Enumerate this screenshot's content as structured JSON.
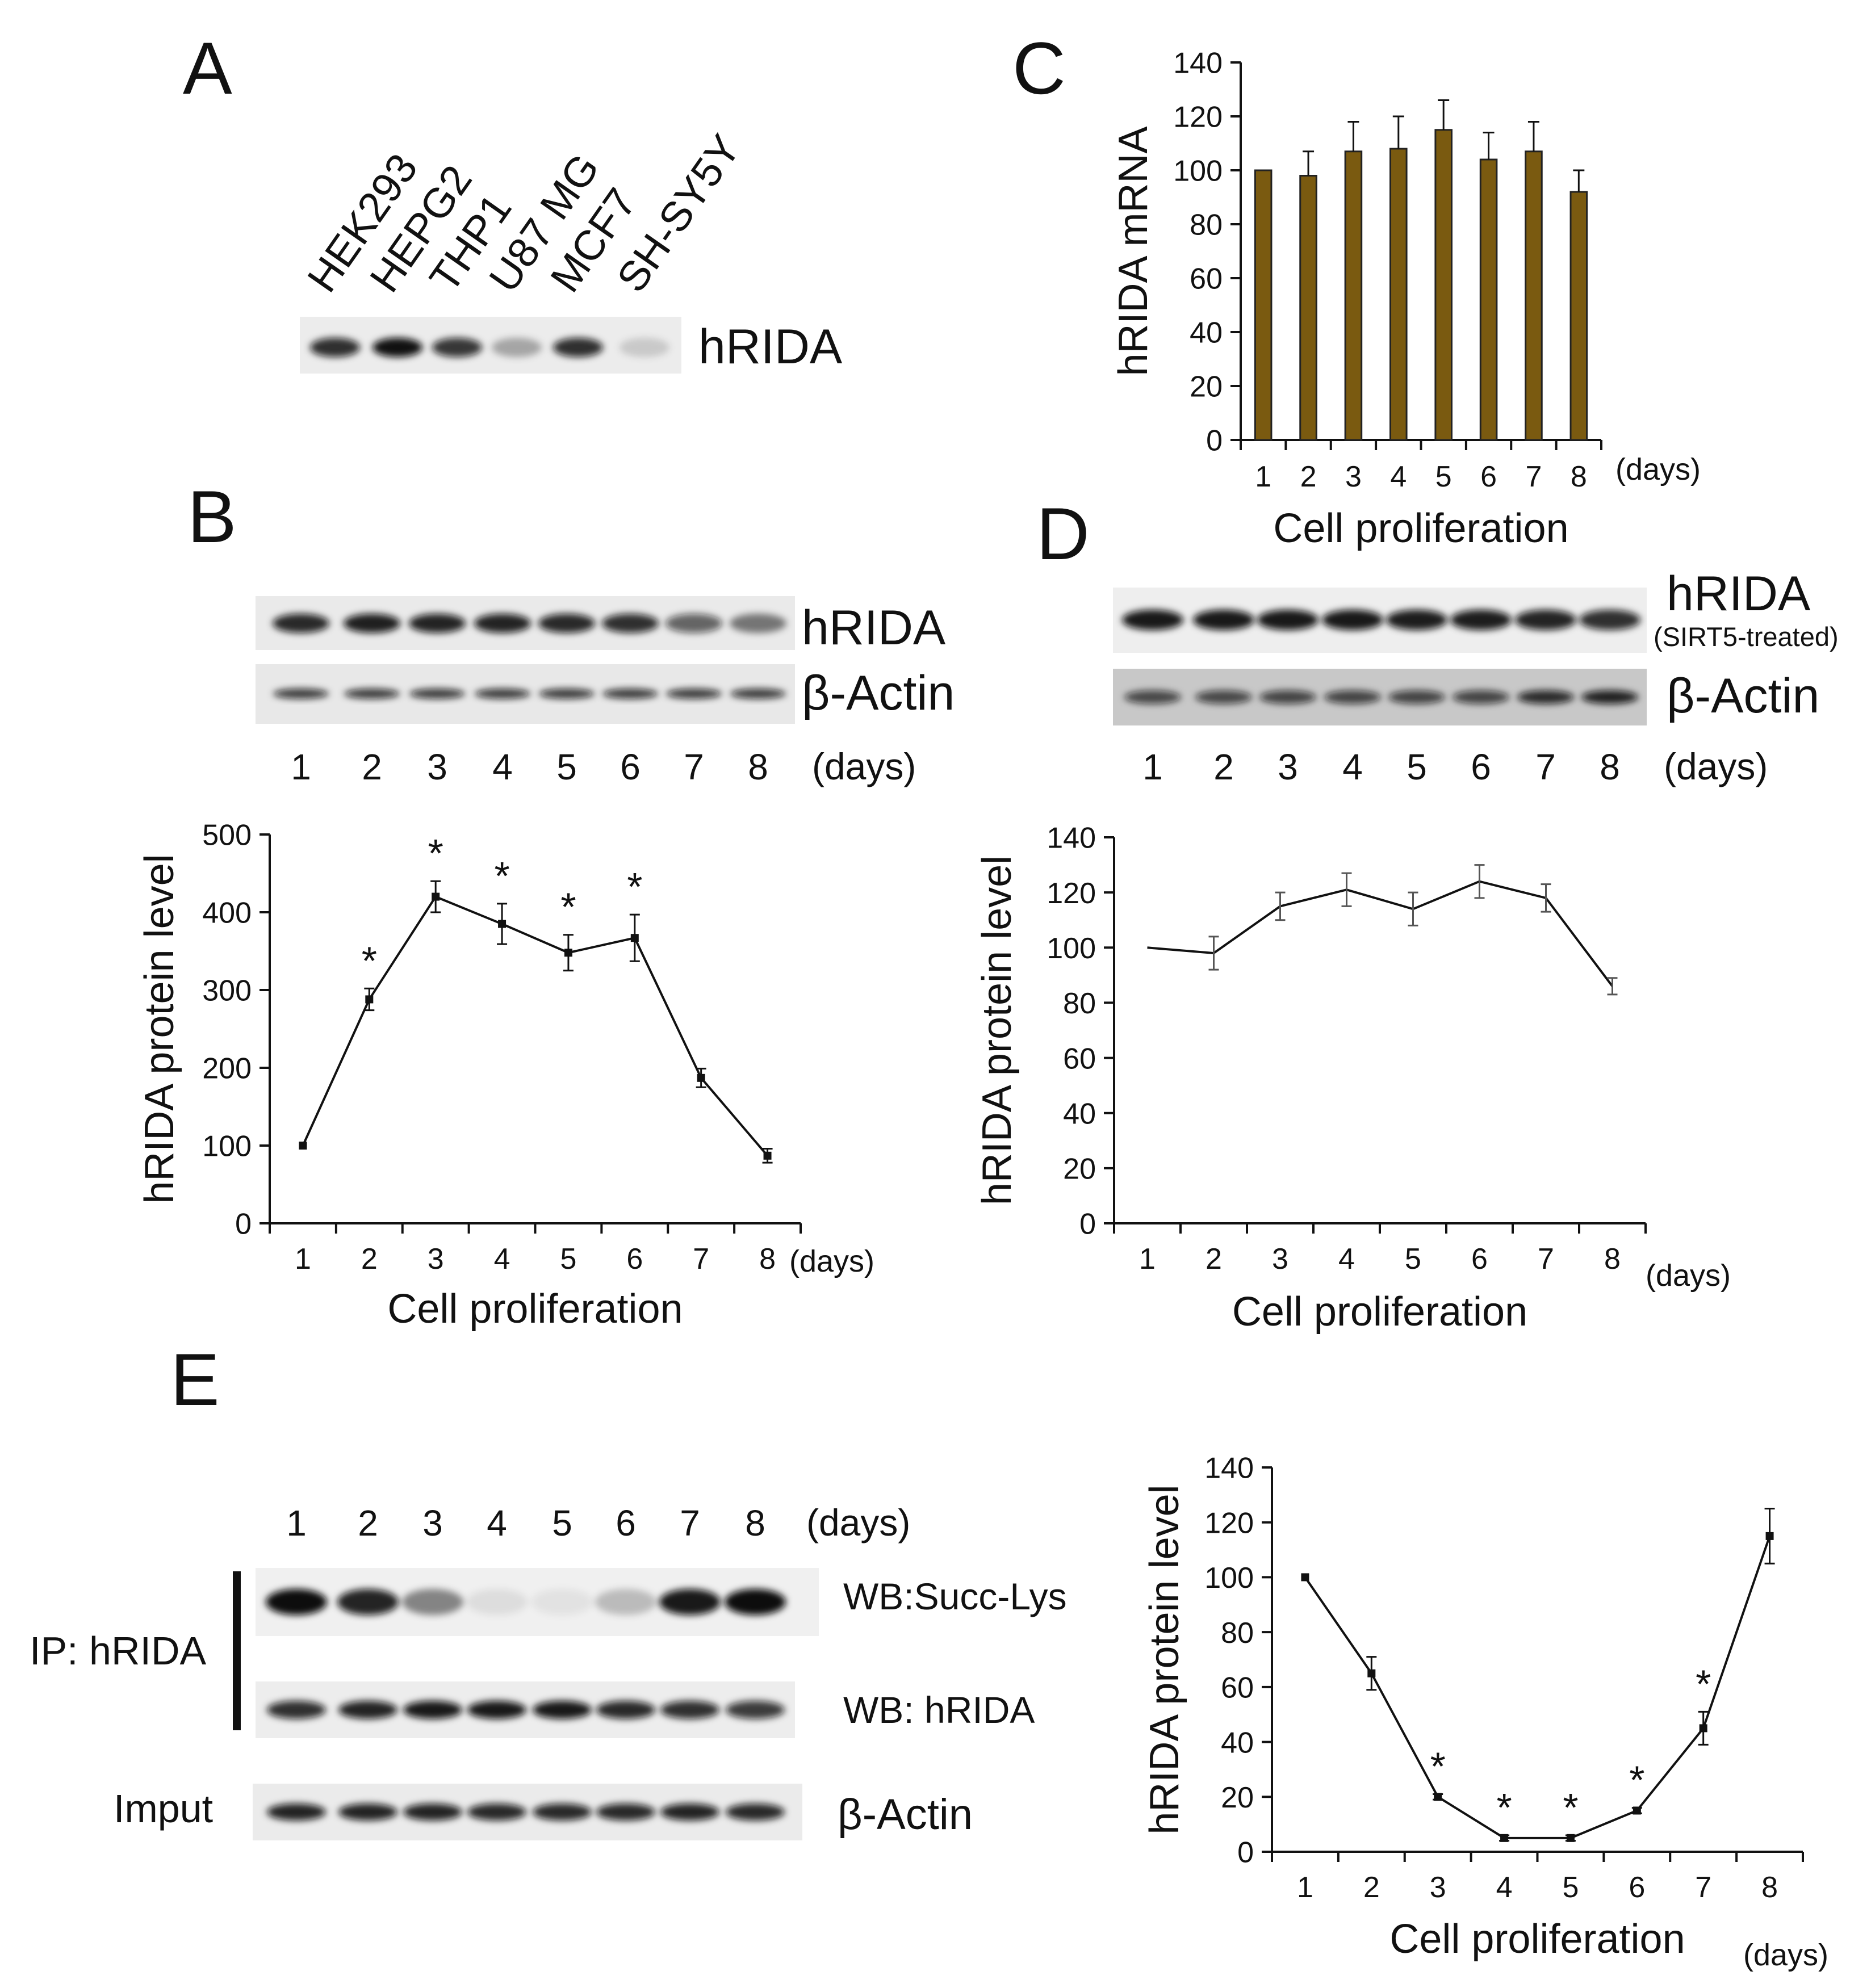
{
  "panel_labels": {
    "A": "A",
    "B": "B",
    "C": "C",
    "D": "D",
    "E": "E"
  },
  "blot_A": {
    "cell_lines": [
      "HEK293",
      "HEPG2",
      "THP1",
      "U87 MG",
      "MCF7",
      "SH-SY5Y"
    ],
    "band_intensity": [
      0.85,
      0.98,
      0.82,
      0.3,
      0.85,
      0.15
    ],
    "label": "hRIDA"
  },
  "blot_B": {
    "lanes": [
      "1",
      "2",
      "3",
      "4",
      "5",
      "6",
      "7",
      "8"
    ],
    "days_label": "(days)",
    "hRIDA_label": "hRIDA",
    "actin_label": "β-Actin",
    "hRIDA_intensity": [
      0.88,
      0.92,
      0.9,
      0.9,
      0.88,
      0.85,
      0.62,
      0.5
    ],
    "actin_intensity": [
      0.8,
      0.8,
      0.8,
      0.8,
      0.8,
      0.8,
      0.8,
      0.8
    ]
  },
  "blot_D": {
    "lanes": [
      "1",
      "2",
      "3",
      "4",
      "5",
      "6",
      "7",
      "8"
    ],
    "days_label": "(days)",
    "hRIDA_label": "hRIDA",
    "sub_label": "(SIRT5-treated)",
    "actin_label": "β-Actin",
    "hRIDA_intensity": [
      0.95,
      0.95,
      0.95,
      0.95,
      0.93,
      0.93,
      0.9,
      0.85
    ],
    "actin_intensity": [
      0.7,
      0.7,
      0.72,
      0.72,
      0.72,
      0.72,
      0.85,
      0.9
    ]
  },
  "blot_E": {
    "lanes": [
      "1",
      "2",
      "3",
      "4",
      "5",
      "6",
      "7",
      "8"
    ],
    "days_label": "(days)",
    "ip_label": "IP: hRIDA",
    "input_label": "Imput",
    "succ_label": "WB:Succ-Lys",
    "wb_label": "WB: hRIDA",
    "actin_label": "β-Actin",
    "succ_intensity": [
      1.0,
      0.9,
      0.45,
      0.08,
      0.06,
      0.22,
      0.95,
      1.0
    ],
    "hRIDA_intensity": [
      0.85,
      0.9,
      0.95,
      0.95,
      0.95,
      0.88,
      0.85,
      0.8
    ],
    "actin_intensity": [
      0.9,
      0.9,
      0.9,
      0.88,
      0.88,
      0.88,
      0.9,
      0.88
    ]
  },
  "chart_data": [
    {
      "id": "C",
      "type": "bar",
      "categories": [
        "1",
        "2",
        "3",
        "4",
        "5",
        "6",
        "7",
        "8"
      ],
      "values": [
        100,
        98,
        107,
        108,
        115,
        104,
        107,
        92
      ],
      "errors": [
        0,
        9,
        11,
        12,
        11,
        10,
        11,
        8
      ],
      "ylabel": "hRIDA mRNA",
      "xlabel": "Cell proliferation",
      "unit_label": "(days)",
      "ylim": [
        0,
        140
      ],
      "yticks": [
        0,
        20,
        40,
        60,
        80,
        100,
        120,
        140
      ],
      "bar_color": "#7a5a10"
    },
    {
      "id": "B",
      "type": "line",
      "categories": [
        "1",
        "2",
        "3",
        "4",
        "5",
        "6",
        "7",
        "8"
      ],
      "values": [
        100,
        288,
        420,
        385,
        348,
        367,
        187,
        87
      ],
      "errors": [
        0,
        14,
        20,
        26,
        23,
        30,
        12,
        9
      ],
      "significant": [
        false,
        true,
        true,
        true,
        true,
        true,
        false,
        false
      ],
      "star": "*",
      "ylabel": "hRIDA protein level",
      "xlabel": "Cell proliferation",
      "unit_label": "(days)",
      "ylim": [
        0,
        500
      ],
      "yticks": [
        0,
        100,
        200,
        300,
        400,
        500
      ]
    },
    {
      "id": "D",
      "type": "line",
      "categories": [
        "1",
        "2",
        "3",
        "4",
        "5",
        "6",
        "7",
        "8"
      ],
      "values": [
        100,
        98,
        115,
        121,
        114,
        124,
        118,
        86
      ],
      "errors": [
        0,
        6,
        5,
        6,
        6,
        6,
        5,
        3
      ],
      "ylabel": "hRIDA protein level",
      "xlabel": "Cell proliferation",
      "unit_label": "(days)",
      "ylim": [
        0,
        140
      ],
      "yticks": [
        0,
        20,
        40,
        60,
        80,
        100,
        120,
        140
      ]
    },
    {
      "id": "E",
      "type": "line",
      "categories": [
        "1",
        "2",
        "3",
        "4",
        "5",
        "6",
        "7",
        "8"
      ],
      "values": [
        100,
        65,
        20,
        5,
        5,
        15,
        45,
        115
      ],
      "errors": [
        0,
        6,
        1,
        1,
        1,
        1,
        6,
        10
      ],
      "significant": [
        false,
        false,
        true,
        true,
        true,
        true,
        true,
        false
      ],
      "star": "*",
      "ylabel": "hRIDA protein level",
      "xlabel": "Cell proliferation",
      "unit_label": "(days)",
      "ylim": [
        0,
        140
      ],
      "yticks": [
        0,
        20,
        40,
        60,
        80,
        100,
        120,
        140
      ]
    }
  ]
}
